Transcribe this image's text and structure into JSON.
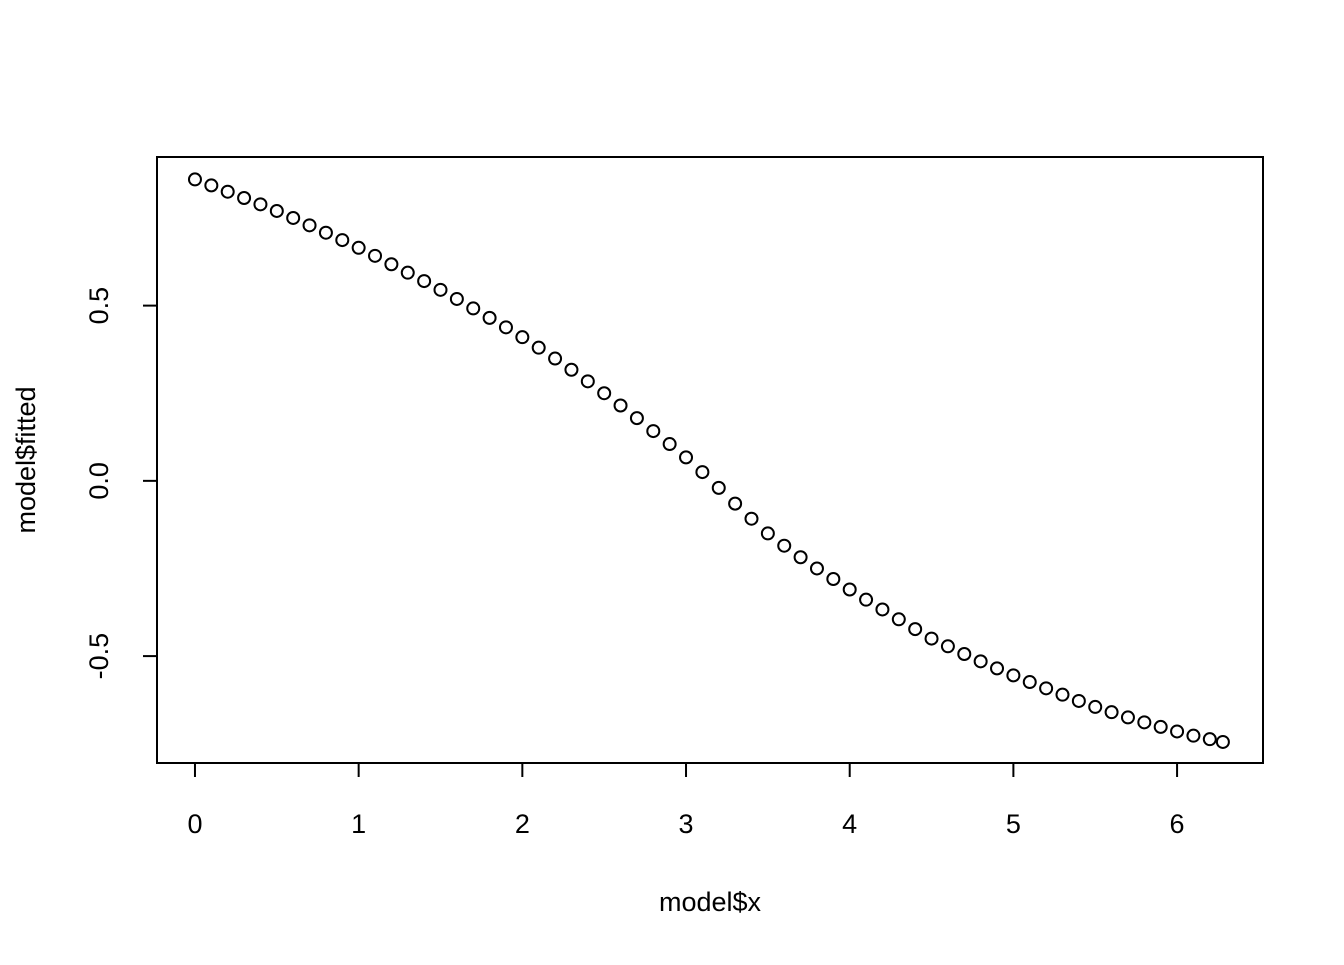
{
  "chart_data": {
    "type": "scatter",
    "xlabel": "model$x",
    "ylabel": "model$fitted",
    "color": "#000000",
    "x": [
      0.0,
      0.1,
      0.2,
      0.3,
      0.4,
      0.5,
      0.6,
      0.7,
      0.8,
      0.9,
      1.0,
      1.1,
      1.2,
      1.3,
      1.4,
      1.5,
      1.6,
      1.7,
      1.8,
      1.9,
      2.0,
      2.1,
      2.2,
      2.3,
      2.4,
      2.5,
      2.6,
      2.7,
      2.8,
      2.9,
      3.0,
      3.1,
      3.2,
      3.3,
      3.4,
      3.5,
      3.6,
      3.7,
      3.8,
      3.9,
      4.0,
      4.1,
      4.2,
      4.3,
      4.4,
      4.5,
      4.6,
      4.7,
      4.8,
      4.9,
      5.0,
      5.1,
      5.2,
      5.3,
      5.4,
      5.5,
      5.6,
      5.7,
      5.8,
      5.9,
      6.0,
      6.1,
      6.2,
      6.28
    ],
    "values": [
      0.86,
      0.843,
      0.825,
      0.807,
      0.789,
      0.77,
      0.75,
      0.729,
      0.708,
      0.687,
      0.665,
      0.642,
      0.618,
      0.594,
      0.57,
      0.545,
      0.519,
      0.492,
      0.465,
      0.438,
      0.41,
      0.38,
      0.349,
      0.317,
      0.284,
      0.25,
      0.215,
      0.179,
      0.142,
      0.105,
      0.067,
      0.025,
      -0.02,
      -0.065,
      -0.108,
      -0.15,
      -0.185,
      -0.218,
      -0.25,
      -0.28,
      -0.31,
      -0.339,
      -0.367,
      -0.395,
      -0.423,
      -0.45,
      -0.472,
      -0.494,
      -0.515,
      -0.535,
      -0.555,
      -0.574,
      -0.592,
      -0.61,
      -0.628,
      -0.645,
      -0.66,
      -0.675,
      -0.689,
      -0.702,
      -0.715,
      -0.727,
      -0.737,
      -0.745
    ],
    "xlim": [
      -0.232,
      6.525
    ],
    "ylim": [
      -0.805,
      0.924
    ],
    "xticks": [
      0,
      1,
      2,
      3,
      4,
      5,
      6
    ],
    "yticks": [
      -0.5,
      {
        "value": 0,
        "label": "0.0"
      },
      0.5
    ]
  }
}
